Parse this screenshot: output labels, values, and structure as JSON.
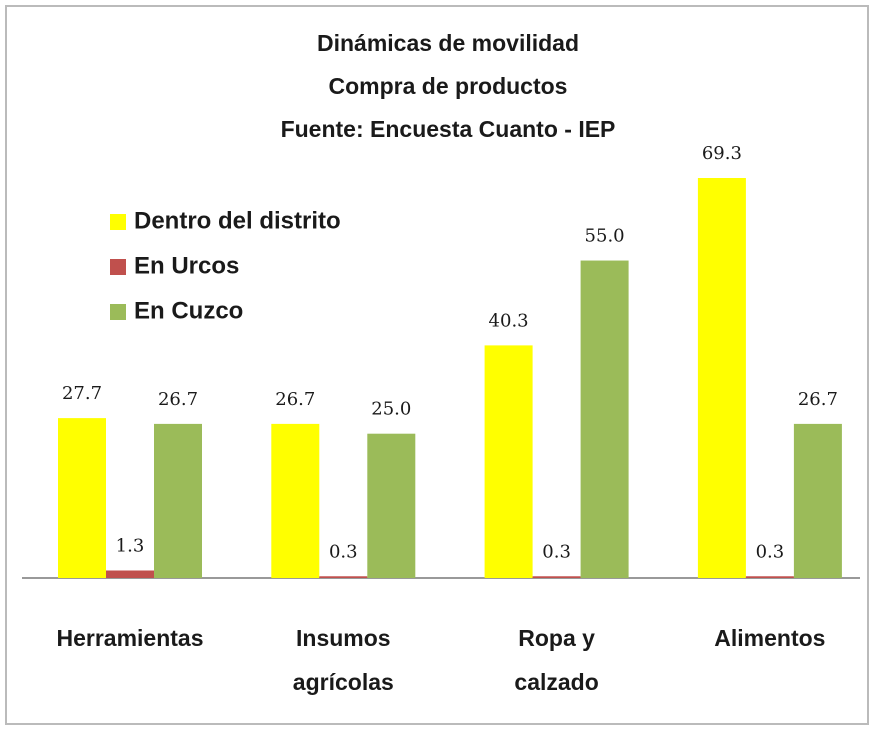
{
  "chart_data": {
    "type": "bar",
    "title": [
      "Dinámicas de movilidad",
      "Compra de productos",
      "Fuente: Encuesta Cuanto - IEP"
    ],
    "categories": [
      [
        "Herramientas"
      ],
      [
        "Insumos",
        "agrícolas"
      ],
      [
        "Ropa y",
        "calzado"
      ],
      [
        "Alimentos"
      ]
    ],
    "series": [
      {
        "name": "Dentro del distrito",
        "color": "#ffff00",
        "values": [
          27.7,
          26.7,
          40.3,
          69.3
        ],
        "value_labels": [
          "27.7",
          "26.7",
          "40.3",
          "69.3"
        ]
      },
      {
        "name": "En Urcos",
        "color": "#c0504d",
        "values": [
          1.3,
          0.3,
          0.3,
          0.3
        ],
        "value_labels": [
          "1.3",
          "0.3",
          "0.3",
          "0.3"
        ]
      },
      {
        "name": "En Cuzco",
        "color": "#9bbb59",
        "values": [
          26.7,
          25.0,
          55.0,
          26.7
        ],
        "value_labels": [
          "26.7",
          "25.0",
          "55.0",
          "26.7"
        ]
      }
    ],
    "legend": "upper left"
  }
}
